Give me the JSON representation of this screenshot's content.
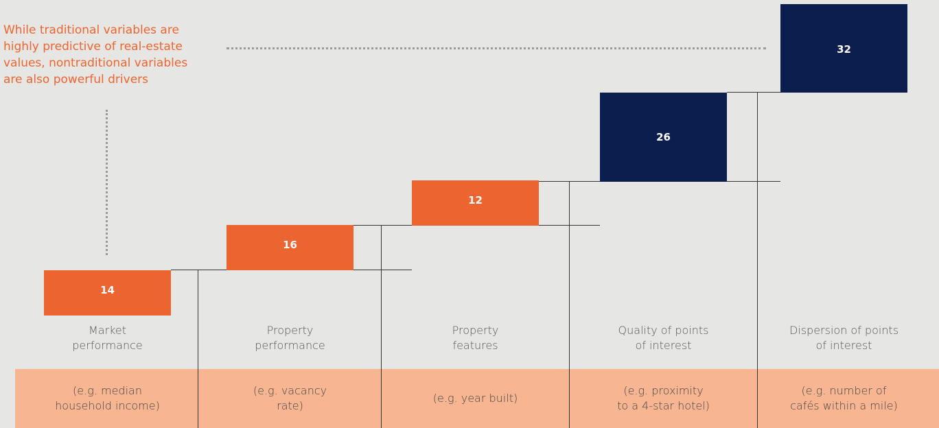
{
  "annotation": [
    "While traditional variables are",
    "highly predictive of real-estate",
    "values, nontraditional variables",
    "are also powerful drivers"
  ],
  "steps": [
    {
      "value": "14",
      "label": [
        "Market",
        "performance"
      ],
      "example": [
        "(e.g. median",
        "household income)"
      ]
    },
    {
      "value": "16",
      "label": [
        "Property",
        "performance"
      ],
      "example": [
        "(e.g. vacancy",
        "rate)"
      ]
    },
    {
      "value": "12",
      "label": [
        "Property",
        "features"
      ],
      "example": [
        "(e.g. year built)"
      ]
    },
    {
      "value": "26",
      "label": [
        "Quality of points",
        "of interest"
      ],
      "example": [
        "(e.g. proximity",
        "to a 4-star hotel)"
      ]
    },
    {
      "value": "32",
      "label": [
        "Dispersion of points",
        "of interest"
      ],
      "example": [
        "(e.g. number of",
        "cafés within a mile)"
      ]
    }
  ]
}
